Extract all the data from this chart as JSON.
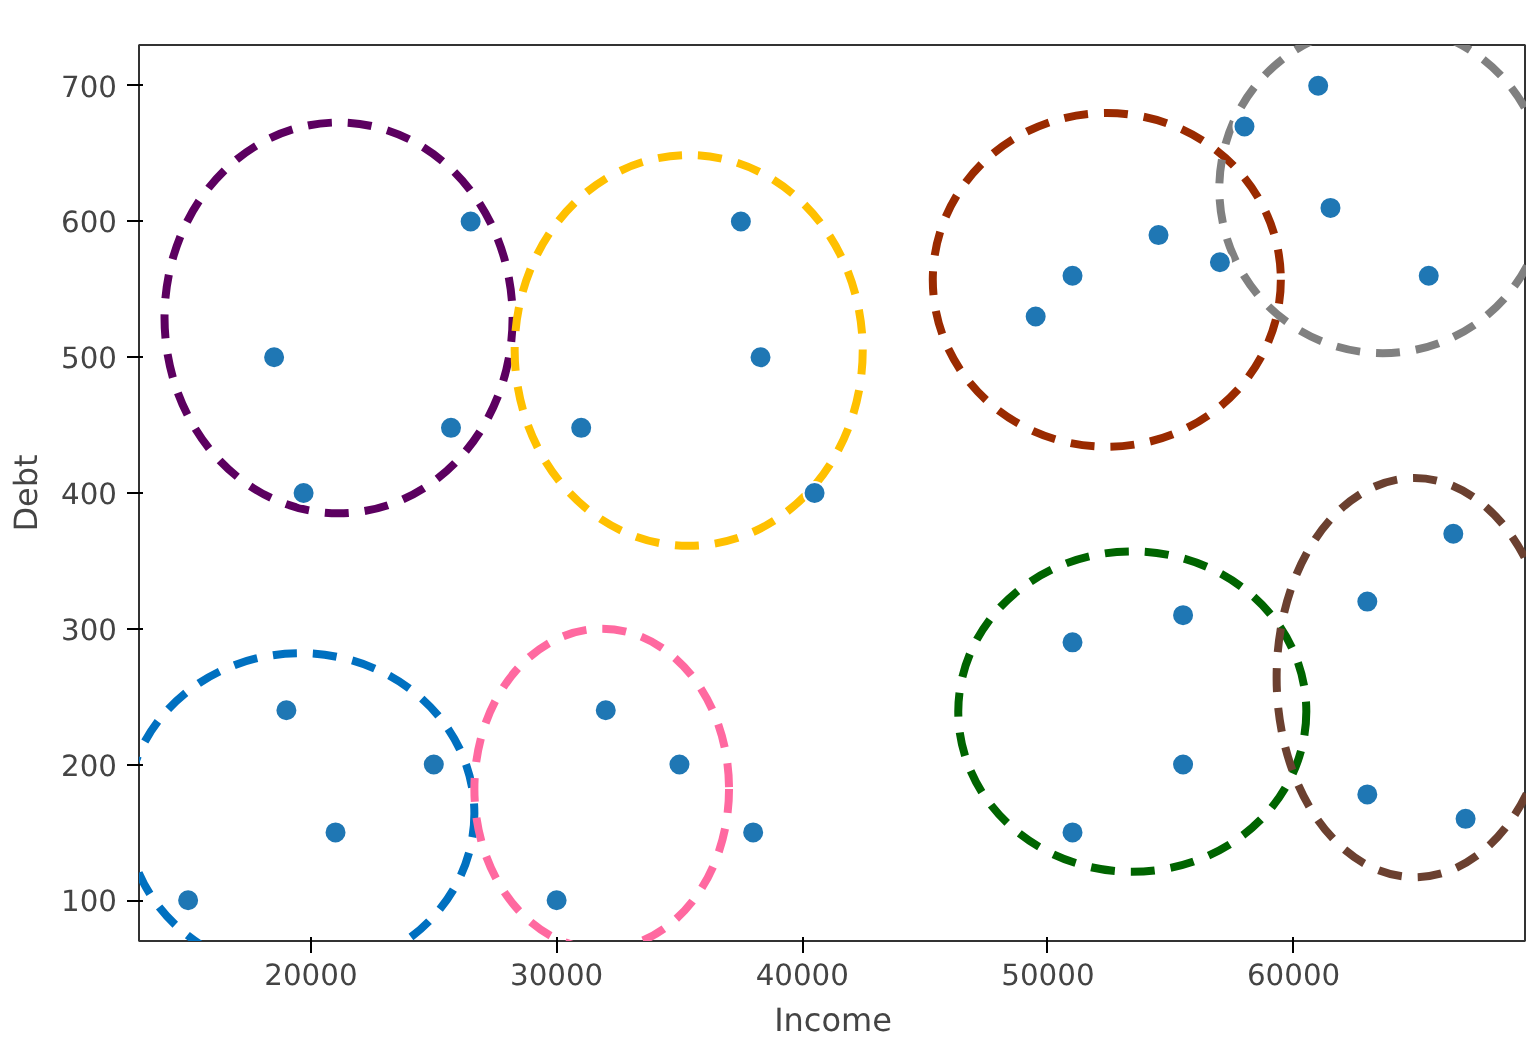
{
  "chart_data": {
    "type": "scatter",
    "xlabel": "Income",
    "ylabel": "Debt",
    "xlim": [
      13000,
      69500
    ],
    "ylim": [
      70,
      730
    ],
    "xticks": [
      20000,
      30000,
      40000,
      50000,
      60000
    ],
    "yticks": [
      100,
      200,
      300,
      400,
      500,
      600,
      700
    ],
    "grid": false,
    "marker": "circle",
    "series": [
      {
        "color": "#1f77b4",
        "x": [
          15000,
          19000,
          21000,
          25000,
          18500,
          19700,
          25700,
          26500,
          30000,
          32000,
          35000,
          38000,
          31000,
          37500,
          38300,
          40500,
          49500,
          51000,
          54500,
          57000,
          58000,
          61000,
          61500,
          65500,
          51000,
          51000,
          55500,
          55500,
          63000,
          63000,
          66500,
          67000
        ],
        "values": [
          100,
          240,
          150,
          200,
          500,
          400,
          448,
          600,
          100,
          240,
          200,
          150,
          448,
          600,
          500,
          400,
          530,
          560,
          590,
          570,
          670,
          700,
          610,
          560,
          290,
          150,
          310,
          200,
          320,
          178,
          370,
          160
        ]
      }
    ]
  }
}
